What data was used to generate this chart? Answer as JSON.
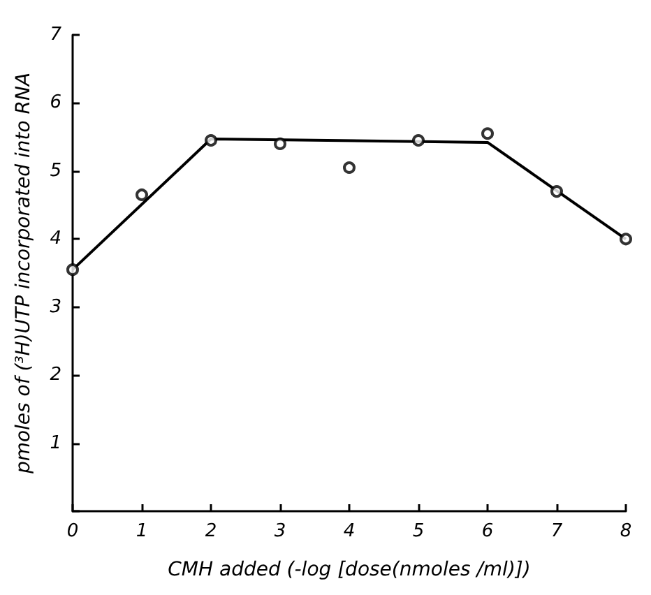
{
  "chart_data": {
    "type": "scatter",
    "xlabel": "CMH added (-log [dose(nmoles /ml)])",
    "ylabel": "pmoles of (³H)UTP incorporated into RNA",
    "xlim": [
      0,
      8
    ],
    "xticks": [
      0,
      1,
      2,
      3,
      4,
      5,
      6,
      7,
      8
    ],
    "ylim": [
      0,
      7
    ],
    "yticks": [
      {
        "value": 0,
        "label": null
      },
      1,
      2,
      3,
      4,
      5,
      6,
      7
    ],
    "grid": false,
    "marker": "circle",
    "series": [
      {
        "color": "#000000",
        "x": [
          0,
          1,
          2,
          3,
          4,
          5,
          6,
          7,
          8
        ],
        "values": [
          3.55,
          4.65,
          5.45,
          5.4,
          5.05,
          5.45,
          5.55,
          4.7,
          4.0
        ]
      },
      {
        "type": "line",
        "color": "#000000",
        "marker": "none",
        "line_style": "solid",
        "x": [
          0,
          2,
          6,
          8
        ],
        "values": [
          3.55,
          5.47,
          5.42,
          4.0
        ]
      }
    ]
  }
}
